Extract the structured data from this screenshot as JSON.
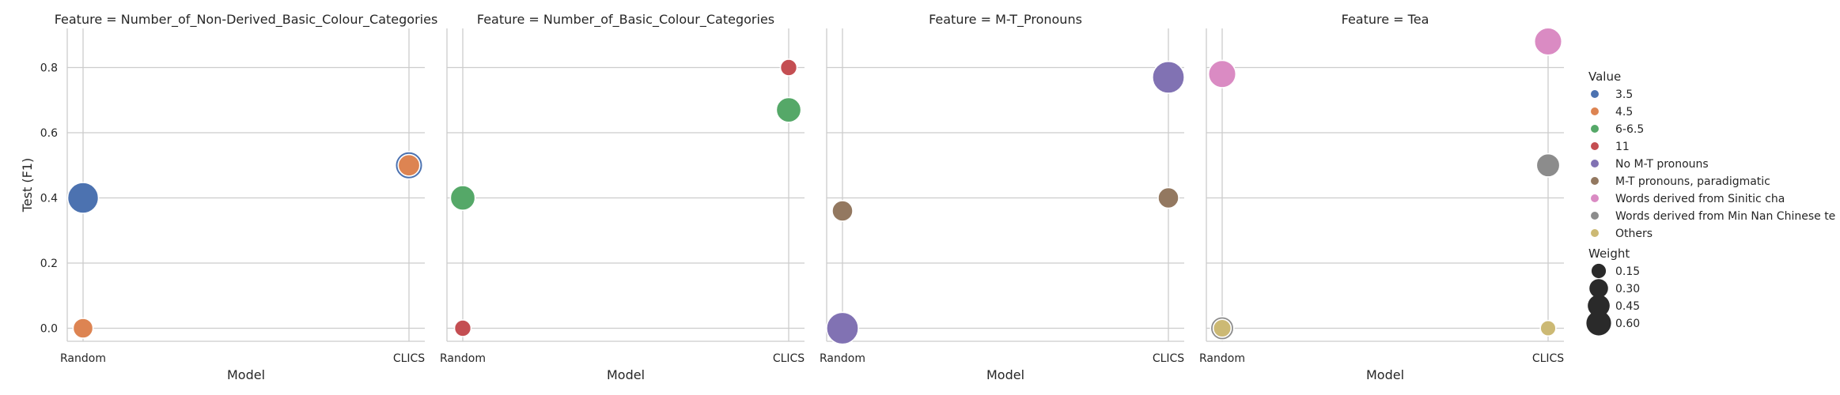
{
  "chart_data": {
    "type": "scatter",
    "ylabel": "Test (F1)",
    "xlabel": "Model",
    "x_categories": [
      "Random",
      "CLICS"
    ],
    "y_ticks": [
      0.0,
      0.2,
      0.4,
      0.6,
      0.8
    ],
    "ylim": [
      -0.04,
      0.92
    ],
    "grid": true,
    "legend_position": "right",
    "hue_legend": {
      "title": "Value",
      "entries": [
        {
          "label": "3.5",
          "color": "#4c72b0"
        },
        {
          "label": "4.5",
          "color": "#dd8452"
        },
        {
          "label": "6-6.5",
          "color": "#55a868"
        },
        {
          "label": "11",
          "color": "#c44e52"
        },
        {
          "label": "No M-T pronouns",
          "color": "#8172b3"
        },
        {
          "label": "M-T pronouns, paradigmatic",
          "color": "#937860"
        },
        {
          "label": "Words derived from Sinitic cha",
          "color": "#da8bc3"
        },
        {
          "label": "Words derived from Min Nan Chinese te",
          "color": "#8c8c8c"
        },
        {
          "label": "Others",
          "color": "#ccb974"
        }
      ]
    },
    "size_legend": {
      "title": "Weight",
      "entries": [
        {
          "label": "0.15",
          "value": 0.15
        },
        {
          "label": "0.30",
          "value": 0.3
        },
        {
          "label": "0.45",
          "value": 0.45
        },
        {
          "label": "0.60",
          "value": 0.6
        }
      ]
    },
    "panels": [
      {
        "title": "Feature = Number_of_Non-Derived_Basic_Colour_Categories",
        "points": [
          {
            "x": "Random",
            "y": 0.4,
            "value": "3.5",
            "weight": 0.6
          },
          {
            "x": "Random",
            "y": 0.0,
            "value": "4.5",
            "weight": 0.2
          },
          {
            "x": "CLICS",
            "y": 0.5,
            "value": "3.5",
            "weight": 0.45
          },
          {
            "x": "CLICS",
            "y": 0.5,
            "value": "4.5",
            "weight": 0.25
          }
        ]
      },
      {
        "title": "Feature = Number_of_Basic_Colour_Categories",
        "points": [
          {
            "x": "Random",
            "y": 0.4,
            "value": "6-6.5",
            "weight": 0.35
          },
          {
            "x": "Random",
            "y": 0.0,
            "value": "11",
            "weight": 0.12
          },
          {
            "x": "CLICS",
            "y": 0.67,
            "value": "6-6.5",
            "weight": 0.35
          },
          {
            "x": "CLICS",
            "y": 0.8,
            "value": "11",
            "weight": 0.12
          }
        ]
      },
      {
        "title": "Feature = M-T_Pronouns",
        "points": [
          {
            "x": "Random",
            "y": 0.0,
            "value": "No M-T pronouns",
            "weight": 0.65
          },
          {
            "x": "Random",
            "y": 0.36,
            "value": "M-T pronouns, paradigmatic",
            "weight": 0.22
          },
          {
            "x": "CLICS",
            "y": 0.77,
            "value": "No M-T pronouns",
            "weight": 0.65
          },
          {
            "x": "CLICS",
            "y": 0.4,
            "value": "M-T pronouns, paradigmatic",
            "weight": 0.22
          }
        ]
      },
      {
        "title": "Feature = Tea",
        "points": [
          {
            "x": "Random",
            "y": 0.78,
            "value": "Words derived from Sinitic cha",
            "weight": 0.45
          },
          {
            "x": "Random",
            "y": 0.0,
            "value": "Words derived from Min Nan Chinese te",
            "weight": 0.3
          },
          {
            "x": "Random",
            "y": 0.0,
            "value": "Others",
            "weight": 0.15
          },
          {
            "x": "CLICS",
            "y": 0.88,
            "value": "Words derived from Sinitic cha",
            "weight": 0.45
          },
          {
            "x": "CLICS",
            "y": 0.5,
            "value": "Words derived from Min Nan Chinese te",
            "weight": 0.3
          },
          {
            "x": "CLICS",
            "y": 0.0,
            "value": "Others",
            "weight": 0.1
          }
        ]
      }
    ]
  }
}
